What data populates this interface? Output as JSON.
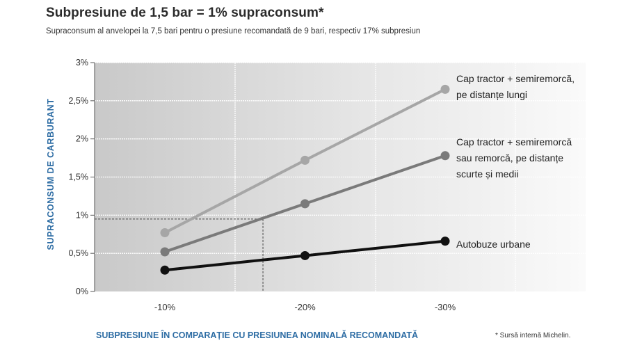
{
  "chart_data": {
    "type": "line",
    "title": "Subpresiune de 1,5 bar = 1% supraconsum*",
    "subtitle": "Supraconsum al anvelopei la 7,5 bari pentru o presiune recomandată de 9 bari, respectiv 17% subpresiun",
    "xlabel": "SUBPRESIUNE ÎN COMPARAȚIE CU PRESIUNEA NOMINALĂ RECOMANDATĂ",
    "ylabel": "SUPRACONSUM DE CARBURANT",
    "x_categories": [
      -10,
      -20,
      -30
    ],
    "x_tick_labels": [
      "-10%",
      "-20%",
      "-30%"
    ],
    "y_ticks": [
      0,
      0.5,
      1,
      1.5,
      2,
      2.5,
      3
    ],
    "y_tick_labels": [
      "0%",
      "0,5%",
      "1%",
      "1,5%",
      "2%",
      "2,5%",
      "3%"
    ],
    "ylim": [
      0,
      3
    ],
    "grid": true,
    "series": [
      {
        "name_lines": [
          "Cap tractor + semiremorcă,",
          "pe distanțe lungi"
        ],
        "x": [
          -10,
          -20,
          -30
        ],
        "values": [
          0.77,
          1.72,
          2.65
        ],
        "color": "#a6a6a6"
      },
      {
        "name_lines": [
          "Cap tractor + semiremorcă",
          "sau remorcă, pe distanțe",
          "scurte și medii"
        ],
        "x": [
          -10,
          -20,
          -30
        ],
        "values": [
          0.52,
          1.15,
          1.78
        ],
        "color": "#7a7a7a"
      },
      {
        "name_lines": [
          "Autobuze urbane"
        ],
        "x": [
          -10,
          -20,
          -30
        ],
        "values": [
          0.28,
          0.47,
          0.66
        ],
        "color": "#111111"
      }
    ],
    "reference_point": {
      "x": -17,
      "y": 0.95
    },
    "accent_color": "#2e6da4"
  },
  "footnote": "* Sursă internă Michelin."
}
